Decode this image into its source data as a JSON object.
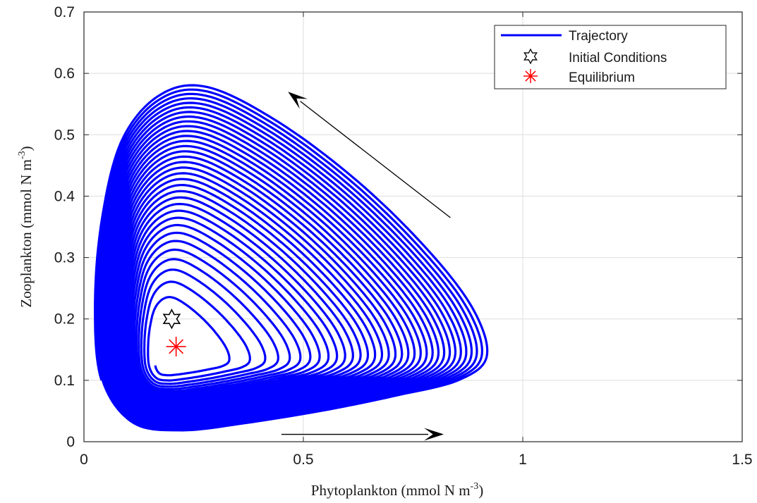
{
  "chart_data": {
    "type": "line",
    "xlabel": "Phytoplankton (mmol N m",
    "xlabel_sup": "-3",
    "xlabel_end": ")",
    "ylabel": "Zooplankton (mmol N m",
    "ylabel_sup": "-3",
    "ylabel_end": ")",
    "xlim": [
      0,
      1.5
    ],
    "ylim": [
      0,
      0.7
    ],
    "xticks": [
      0,
      0.5,
      1,
      1.5
    ],
    "xtick_labels": [
      "0",
      "0.5",
      "1",
      "1.5"
    ],
    "yticks": [
      0,
      0.1,
      0.2,
      0.3,
      0.4,
      0.5,
      0.6,
      0.7
    ],
    "ytick_labels": [
      "0",
      "0.1",
      "0.2",
      "0.3",
      "0.4",
      "0.5",
      "0.6",
      "0.7"
    ],
    "grid": true,
    "legend_position": "top-right",
    "legend": [
      "Trajectory",
      "Initial Conditions",
      "Equilibrium"
    ],
    "trajectory": {
      "name": "Trajectory",
      "color": "#0000ff",
      "spiral": "outward from equilibrium toward a limit cycle",
      "inner_cycle": {
        "x_range": [
          0.16,
          0.29
        ],
        "y_range": [
          0.11,
          0.2
        ]
      },
      "outer_cycle": {
        "x_range": [
          0.02,
          0.93
        ],
        "y_range": [
          0.01,
          0.58
        ]
      }
    },
    "initial_conditions": {
      "name": "Initial Conditions",
      "x": 0.2,
      "y": 0.2,
      "color": "#000000",
      "marker": "hexagram"
    },
    "equilibrium": {
      "name": "Equilibrium",
      "x": 0.21,
      "y": 0.155,
      "color": "#ff0000",
      "marker": "asterisk"
    },
    "arrows": [
      {
        "from": [
          0.45,
          0.012
        ],
        "to": [
          0.82,
          0.012
        ],
        "color": "#000000"
      },
      {
        "from": [
          0.835,
          0.365
        ],
        "to": [
          0.465,
          0.57
        ],
        "color": "#000000"
      }
    ]
  }
}
